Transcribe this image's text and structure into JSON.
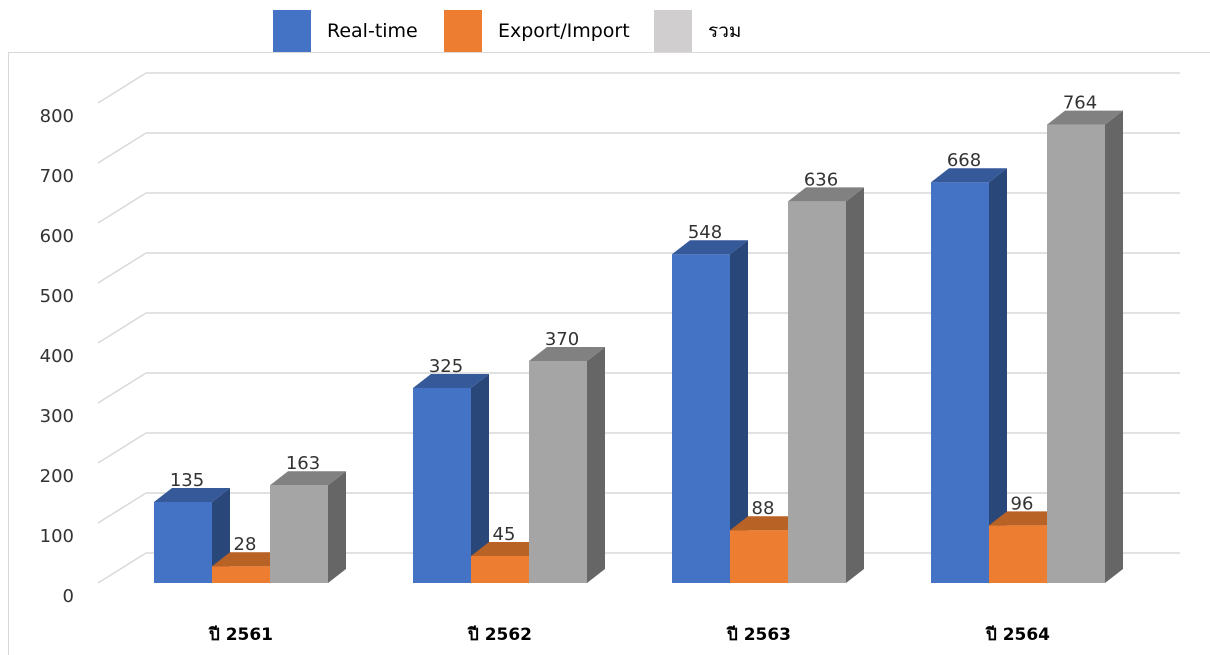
{
  "chart_data": {
    "type": "bar",
    "style": "3d-clustered-column",
    "title": "",
    "xlabel": "",
    "ylabel": "",
    "categories": [
      "ปี 2561",
      "ปี 2562",
      "ปี 2563",
      "ปี 2564"
    ],
    "series": [
      {
        "name": "Real-time",
        "values": [
          135,
          325,
          548,
          668
        ],
        "color": "#4472c4"
      },
      {
        "name": "Export/Import",
        "values": [
          28,
          45,
          88,
          96
        ],
        "color": "#ed7d31"
      },
      {
        "name": "รวม",
        "values": [
          163,
          370,
          636,
          764
        ],
        "color": "#a5a5a5"
      }
    ],
    "ylim": [
      0,
      800
    ],
    "yticks": [
      0,
      100,
      200,
      300,
      400,
      500,
      600,
      700,
      800
    ],
    "grid": true,
    "legend_position": "top",
    "data_labels": true
  }
}
